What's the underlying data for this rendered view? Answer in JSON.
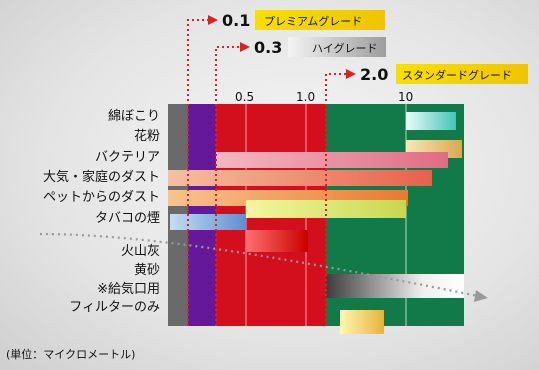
{
  "chart_data": {
    "type": "range-bar",
    "x_scale": "log",
    "tick_labels": [
      "0.5",
      "1.0",
      "10"
    ],
    "ticks": [
      0.5,
      1.0,
      10
    ],
    "unit_label": "(単位：マイクロメートル)",
    "grades": [
      {
        "value_label": "0.1",
        "value": 0.1,
        "name": "プレミアムグレード",
        "color": "#f2d400"
      },
      {
        "value_label": "0.3",
        "value": 0.3,
        "name": "ハイグレード",
        "color": "#d7d7d7"
      },
      {
        "value_label": "2.0",
        "value": 2.0,
        "name": "スタンダードグレード",
        "color": "#f2d400"
      }
    ],
    "categories": [
      "綿ぼこり",
      "花粉",
      "バクテリア",
      "大気・家庭のダスト",
      "ペットからのダスト",
      "タバコの煙",
      "火山灰",
      "黄砂",
      "※給気口用",
      "フィルターのみ"
    ],
    "ranges": [
      {
        "category": "綿ぼこり",
        "from": 10,
        "to": 25,
        "color": "#5fd0c8"
      },
      {
        "category": "花粉",
        "from": 10,
        "to": 30,
        "color": "#e6c27a"
      },
      {
        "category": "バクテリア",
        "from": 0.2,
        "to": 20,
        "color": "#f09aa8"
      },
      {
        "category": "大気・家庭のダスト",
        "from": 0.01,
        "to": 18,
        "color": "#f4a27c"
      },
      {
        "category": "ペットからのダスト",
        "from": 0.01,
        "to": 10,
        "color": "#f6a86a"
      },
      {
        "category": "タバコの煙",
        "from": 0.01,
        "to": 0.5,
        "color": "#7fb0e0"
      },
      {
        "category": "タバコの煙",
        "from": 0.4,
        "to": 10,
        "color": "#e6f08a"
      },
      {
        "category": "火山灰",
        "from": 0.03,
        "to": 1.0,
        "color": "#e33"
      },
      {
        "category": "黄砂",
        "from": 2,
        "to": 30,
        "color": "#bbb"
      },
      {
        "category": "フィルターのみ",
        "from": 2.5,
        "to": 6,
        "color": "#f0d080"
      }
    ]
  }
}
